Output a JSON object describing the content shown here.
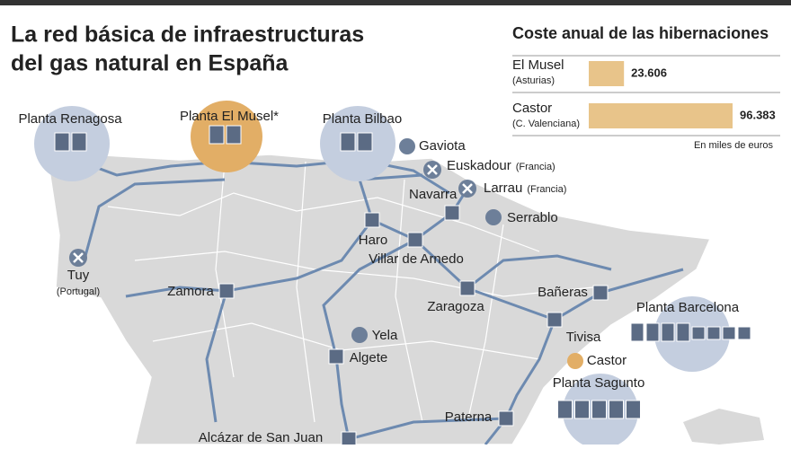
{
  "title": [
    "La red básica de infraestructuras",
    "del gas natural en España"
  ],
  "map": {
    "labels": [
      {
        "name": "Planta Renagosa"
      },
      {
        "name": "Planta El Musel*"
      },
      {
        "name": "Planta Bilbao"
      },
      {
        "name": "Gaviota"
      },
      {
        "name": "Euskadour",
        "note": "(Francia)"
      },
      {
        "name": "Navarra"
      },
      {
        "name": "Larrau",
        "note": "(Francia)"
      },
      {
        "name": "Serrablo"
      },
      {
        "name": "Haro"
      },
      {
        "name": "Villar de Arnedo"
      },
      {
        "name": "Tuy",
        "note": "(Portugal)"
      },
      {
        "name": "Zamora"
      },
      {
        "name": "Zaragoza"
      },
      {
        "name": "Bañeras"
      },
      {
        "name": "Planta Barcelona"
      },
      {
        "name": "Yela"
      },
      {
        "name": "Algete"
      },
      {
        "name": "Tivisa"
      },
      {
        "name": "Castor"
      },
      {
        "name": "Planta Sagunto"
      },
      {
        "name": "Paterna"
      },
      {
        "name": "Alcázar de San Juan"
      }
    ]
  },
  "chart_data": {
    "type": "bar",
    "orientation": "horizontal",
    "title": "Coste anual de las hibernaciones",
    "categories": [
      "El Musel",
      "Castor"
    ],
    "sublabels": [
      "(Asturias)",
      "(C. Valenciana)"
    ],
    "values": [
      23606,
      96383
    ],
    "value_labels": [
      "23.606",
      "96.383"
    ],
    "unit_label": "En miles de euros",
    "color": "#e8c48a"
  }
}
